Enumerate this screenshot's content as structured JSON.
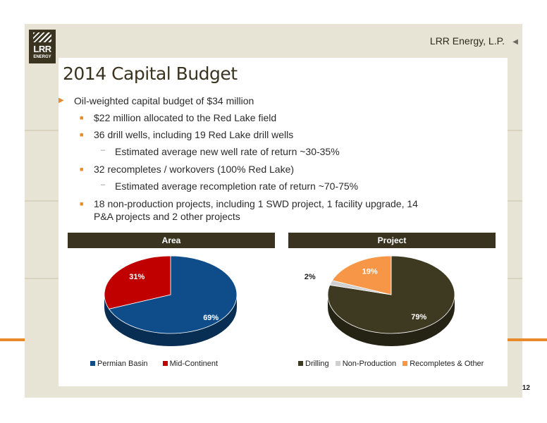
{
  "header": {
    "company": "LRR Energy, L.P.",
    "logo_text": "LRR",
    "logo_sub": "ENERGY",
    "page_number": "12"
  },
  "title": "2014 Capital Budget",
  "bullets": {
    "b1": "Oil-weighted capital budget of $34 million",
    "b2": "$22 million allocated to the Red Lake field",
    "b3": "36 drill wells, including 19 Red Lake drill wells",
    "b4": "Estimated average new well rate of return ~30-35%",
    "b5": "32 recompletes / workovers (100% Red Lake)",
    "b6": "Estimated average recompletion rate of return ~70-75%",
    "b7a": "18 non-production projects, including 1 SWD project, 1 facility upgrade, 14",
    "b7b": "P&A projects and 2 other projects"
  },
  "colors": {
    "brand": "#3a3320",
    "accent": "#e8892a",
    "permian": "#0f4c8a",
    "midcontinent": "#c00000",
    "drilling": "#3e3a22",
    "nonproduction": "#d0d0d0",
    "recompletes": "#f79646"
  },
  "chart_data": [
    {
      "type": "pie",
      "title": "Area",
      "categories": [
        "Permian Basin",
        "Mid-Continent"
      ],
      "values": [
        69,
        31
      ],
      "labels": [
        "69%",
        "31%"
      ],
      "legend": "bottom"
    },
    {
      "type": "pie",
      "title": "Project",
      "categories": [
        "Drilling",
        "Non-Production",
        "Recompletes & Other"
      ],
      "values": [
        79,
        2,
        19
      ],
      "labels": [
        "79%",
        "2%",
        "19%"
      ],
      "legend": "bottom"
    }
  ]
}
